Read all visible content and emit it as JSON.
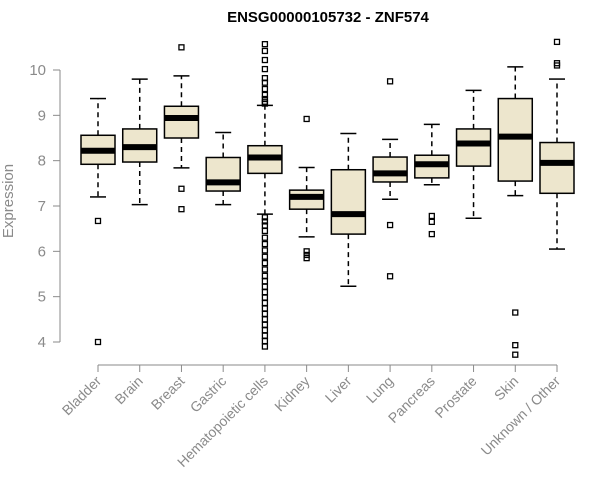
{
  "chart_data": {
    "type": "boxplot",
    "title": "ENSG00000105732 - ZNF574",
    "xlabel": "",
    "ylabel": "Expression",
    "ylim": [
      3.45,
      10.95
    ],
    "yticks": [
      4,
      5,
      6,
      7,
      8,
      9,
      10
    ],
    "box_fill": "#ede6cd",
    "categories": [
      "Bladder",
      "Brain",
      "Breast",
      "Gastric",
      "Hematopoietic cells",
      "Kidney",
      "Liver",
      "Lung",
      "Pancreas",
      "Prostate",
      "Skin",
      "Unknown / Other"
    ],
    "boxes": [
      {
        "name": "Bladder",
        "whisker_low": 7.2,
        "q1": 7.92,
        "median": 8.22,
        "q3": 8.56,
        "whisker_high": 9.37,
        "outliers": [
          6.67,
          4.0
        ]
      },
      {
        "name": "Brain",
        "whisker_low": 7.03,
        "q1": 7.97,
        "median": 8.3,
        "q3": 8.7,
        "whisker_high": 9.8,
        "outliers": []
      },
      {
        "name": "Breast",
        "whisker_low": 7.84,
        "q1": 8.5,
        "median": 8.94,
        "q3": 9.2,
        "whisker_high": 9.87,
        "outliers": [
          10.5,
          7.38,
          6.93
        ]
      },
      {
        "name": "Gastric",
        "whisker_low": 7.03,
        "q1": 7.33,
        "median": 7.52,
        "q3": 8.07,
        "whisker_high": 8.62,
        "outliers": []
      },
      {
        "name": "Hematopoietic cells",
        "whisker_low": 6.82,
        "q1": 7.72,
        "median": 8.07,
        "q3": 8.33,
        "whisker_high": 9.22,
        "outliers": [
          10.57,
          10.42,
          10.22,
          10.02,
          9.82,
          9.72,
          9.58,
          9.45,
          9.36,
          9.3,
          9.26,
          6.75,
          6.66,
          6.57,
          6.45,
          6.3,
          6.16,
          6.02,
          5.88,
          5.74,
          5.6,
          5.46,
          5.34,
          5.22,
          5.1,
          4.98,
          4.86,
          4.74,
          4.62,
          4.5,
          4.38,
          4.26,
          4.14,
          4.02,
          3.9
        ]
      },
      {
        "name": "Kidney",
        "whisker_low": 6.32,
        "q1": 6.93,
        "median": 7.2,
        "q3": 7.35,
        "whisker_high": 7.85,
        "outliers": [
          8.92,
          6.0,
          5.92,
          5.85
        ]
      },
      {
        "name": "Liver",
        "whisker_low": 5.23,
        "q1": 6.38,
        "median": 6.82,
        "q3": 7.8,
        "whisker_high": 8.6,
        "outliers": []
      },
      {
        "name": "Lung",
        "whisker_low": 7.15,
        "q1": 7.53,
        "median": 7.72,
        "q3": 8.08,
        "whisker_high": 8.47,
        "outliers": [
          9.75,
          6.58,
          5.45
        ]
      },
      {
        "name": "Pancreas",
        "whisker_low": 7.47,
        "q1": 7.62,
        "median": 7.92,
        "q3": 8.12,
        "whisker_high": 8.8,
        "outliers": [
          6.78,
          6.65,
          6.38
        ]
      },
      {
        "name": "Prostate",
        "whisker_low": 6.73,
        "q1": 7.88,
        "median": 8.38,
        "q3": 8.7,
        "whisker_high": 9.55,
        "outliers": []
      },
      {
        "name": "Skin",
        "whisker_low": 7.23,
        "q1": 7.55,
        "median": 8.53,
        "q3": 9.37,
        "whisker_high": 10.07,
        "outliers": [
          4.65,
          3.93,
          3.72
        ]
      },
      {
        "name": "Unknown / Other",
        "whisker_low": 6.05,
        "q1": 7.28,
        "median": 7.95,
        "q3": 8.4,
        "whisker_high": 9.8,
        "outliers": [
          10.62,
          10.15,
          10.1
        ]
      }
    ]
  }
}
